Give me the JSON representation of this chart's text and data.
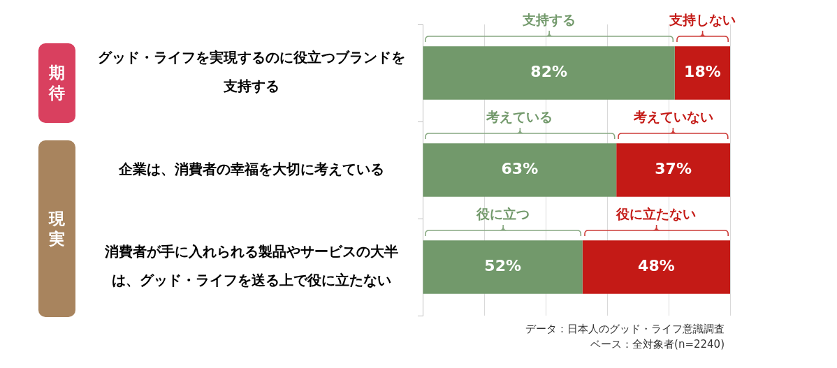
{
  "chart_data": {
    "type": "bar",
    "orientation": "horizontal",
    "stacked": true,
    "categories": [
      "グッド・ライフを実現するのに役立つブランドを支持する",
      "企業は、消費者の幸福を大切に考えている",
      "消費者が手に入れられる製品やサービスの大半は、グッド・ライフを送る上で役に立たない"
    ],
    "series": [
      {
        "color": "#72996b",
        "values": [
          82,
          63,
          52
        ],
        "value_labels": [
          "82%",
          "63%",
          "52%"
        ]
      },
      {
        "color": "#c41a16",
        "values": [
          18,
          37,
          48
        ],
        "value_labels": [
          "18%",
          "37%",
          "48%"
        ]
      }
    ],
    "xlim": [
      0,
      100
    ],
    "xticks": [
      {
        "value": 0,
        "label": null
      },
      {
        "value": 20,
        "label": null
      },
      {
        "value": 40,
        "label": null
      },
      {
        "value": 60,
        "label": null
      },
      {
        "value": 80,
        "label": null
      },
      {
        "value": 100,
        "label": null
      }
    ],
    "grid": "x",
    "tick_labels": "y",
    "annotations": [
      "支持する",
      "支持しない",
      "考えている",
      "考えていない",
      "役に立つ",
      "役に立たない",
      "期待",
      "現実",
      "データ：日本人のグッド・ライフ意識調査",
      "ベース：全対象者(n=2240)"
    ]
  }
}
